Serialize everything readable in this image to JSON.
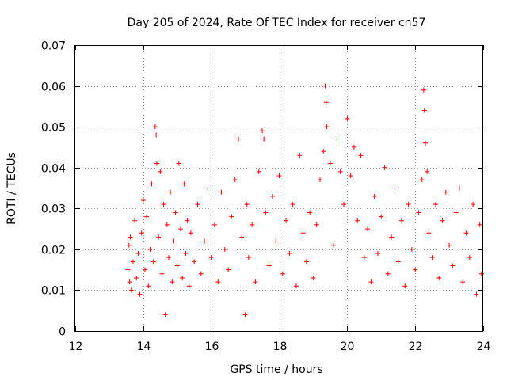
{
  "chart_data": {
    "type": "scatter",
    "title": "Day 205 of 2024, Rate Of TEC Index for receiver cn57",
    "xlabel": "GPS time / hours",
    "ylabel": "ROTI / TECUs",
    "xlim": [
      12,
      24
    ],
    "ylim": [
      0,
      0.07
    ],
    "xticks": [
      12,
      14,
      16,
      18,
      20,
      22,
      24
    ],
    "xtick_labels": [
      "12",
      "14",
      "16",
      "18",
      "20",
      "22",
      "24"
    ],
    "yticks": [
      0,
      0.01,
      0.02,
      0.03,
      0.04,
      0.05,
      0.06,
      0.07
    ],
    "ytick_labels": [
      "0",
      "0.01",
      "0.02",
      "0.03",
      "0.04",
      "0.05",
      "0.06",
      "0.07"
    ],
    "grid": true,
    "marker": "plus",
    "color": "#ff0000",
    "series": [
      {
        "name": "ROTI",
        "points": [
          [
            13.55,
            0.015
          ],
          [
            13.58,
            0.021
          ],
          [
            13.6,
            0.012
          ],
          [
            13.62,
            0.023
          ],
          [
            13.65,
            0.01
          ],
          [
            13.7,
            0.017
          ],
          [
            13.75,
            0.027
          ],
          [
            13.8,
            0.013
          ],
          [
            13.85,
            0.019
          ],
          [
            13.9,
            0.009
          ],
          [
            13.95,
            0.024
          ],
          [
            14.0,
            0.032
          ],
          [
            14.05,
            0.015
          ],
          [
            14.1,
            0.028
          ],
          [
            14.15,
            0.011
          ],
          [
            14.2,
            0.02
          ],
          [
            14.25,
            0.036
          ],
          [
            14.3,
            0.017
          ],
          [
            14.35,
            0.05
          ],
          [
            14.38,
            0.048
          ],
          [
            14.4,
            0.041
          ],
          [
            14.45,
            0.023
          ],
          [
            14.5,
            0.039
          ],
          [
            14.55,
            0.014
          ],
          [
            14.6,
            0.031
          ],
          [
            14.65,
            0.004
          ],
          [
            14.7,
            0.026
          ],
          [
            14.75,
            0.018
          ],
          [
            14.8,
            0.034
          ],
          [
            14.85,
            0.012
          ],
          [
            14.9,
            0.022
          ],
          [
            14.95,
            0.029
          ],
          [
            15.0,
            0.016
          ],
          [
            15.05,
            0.041
          ],
          [
            15.1,
            0.025
          ],
          [
            15.15,
            0.013
          ],
          [
            15.2,
            0.036
          ],
          [
            15.25,
            0.019
          ],
          [
            15.3,
            0.027
          ],
          [
            15.35,
            0.011
          ],
          [
            15.4,
            0.024
          ],
          [
            15.5,
            0.017
          ],
          [
            15.6,
            0.031
          ],
          [
            15.7,
            0.014
          ],
          [
            15.8,
            0.022
          ],
          [
            15.9,
            0.035
          ],
          [
            16.0,
            0.018
          ],
          [
            16.1,
            0.026
          ],
          [
            16.2,
            0.012
          ],
          [
            16.3,
            0.034
          ],
          [
            16.4,
            0.02
          ],
          [
            16.5,
            0.015
          ],
          [
            16.6,
            0.028
          ],
          [
            16.7,
            0.037
          ],
          [
            16.8,
            0.047
          ],
          [
            16.9,
            0.023
          ],
          [
            17.0,
            0.004
          ],
          [
            17.05,
            0.031
          ],
          [
            17.1,
            0.018
          ],
          [
            17.2,
            0.026
          ],
          [
            17.3,
            0.012
          ],
          [
            17.4,
            0.039
          ],
          [
            17.5,
            0.049
          ],
          [
            17.55,
            0.047
          ],
          [
            17.6,
            0.029
          ],
          [
            17.7,
            0.016
          ],
          [
            17.8,
            0.033
          ],
          [
            17.9,
            0.022
          ],
          [
            18.0,
            0.038
          ],
          [
            18.1,
            0.014
          ],
          [
            18.2,
            0.027
          ],
          [
            18.3,
            0.019
          ],
          [
            18.4,
            0.031
          ],
          [
            18.5,
            0.011
          ],
          [
            18.6,
            0.043
          ],
          [
            18.7,
            0.024
          ],
          [
            18.8,
            0.017
          ],
          [
            18.9,
            0.029
          ],
          [
            19.0,
            0.013
          ],
          [
            19.1,
            0.026
          ],
          [
            19.2,
            0.037
          ],
          [
            19.3,
            0.044
          ],
          [
            19.35,
            0.06
          ],
          [
            19.38,
            0.056
          ],
          [
            19.4,
            0.05
          ],
          [
            19.5,
            0.041
          ],
          [
            19.6,
            0.021
          ],
          [
            19.7,
            0.047
          ],
          [
            19.8,
            0.039
          ],
          [
            19.9,
            0.031
          ],
          [
            20.0,
            0.052
          ],
          [
            20.1,
            0.038
          ],
          [
            20.2,
            0.045
          ],
          [
            20.3,
            0.027
          ],
          [
            20.4,
            0.043
          ],
          [
            20.5,
            0.018
          ],
          [
            20.6,
            0.025
          ],
          [
            20.7,
            0.012
          ],
          [
            20.8,
            0.033
          ],
          [
            20.9,
            0.019
          ],
          [
            21.0,
            0.028
          ],
          [
            21.1,
            0.04
          ],
          [
            21.2,
            0.014
          ],
          [
            21.3,
            0.023
          ],
          [
            21.4,
            0.035
          ],
          [
            21.5,
            0.017
          ],
          [
            21.6,
            0.027
          ],
          [
            21.7,
            0.011
          ],
          [
            21.8,
            0.031
          ],
          [
            21.9,
            0.02
          ],
          [
            22.0,
            0.015
          ],
          [
            22.1,
            0.029
          ],
          [
            22.2,
            0.037
          ],
          [
            22.25,
            0.059
          ],
          [
            22.27,
            0.054
          ],
          [
            22.3,
            0.046
          ],
          [
            22.35,
            0.039
          ],
          [
            22.4,
            0.024
          ],
          [
            22.5,
            0.018
          ],
          [
            22.6,
            0.031
          ],
          [
            22.7,
            0.013
          ],
          [
            22.8,
            0.027
          ],
          [
            22.9,
            0.034
          ],
          [
            23.0,
            0.021
          ],
          [
            23.1,
            0.016
          ],
          [
            23.2,
            0.029
          ],
          [
            23.3,
            0.035
          ],
          [
            23.4,
            0.012
          ],
          [
            23.5,
            0.024
          ],
          [
            23.6,
            0.018
          ],
          [
            23.7,
            0.031
          ],
          [
            23.8,
            0.009
          ],
          [
            23.9,
            0.026
          ],
          [
            23.95,
            0.014
          ]
        ]
      }
    ]
  }
}
